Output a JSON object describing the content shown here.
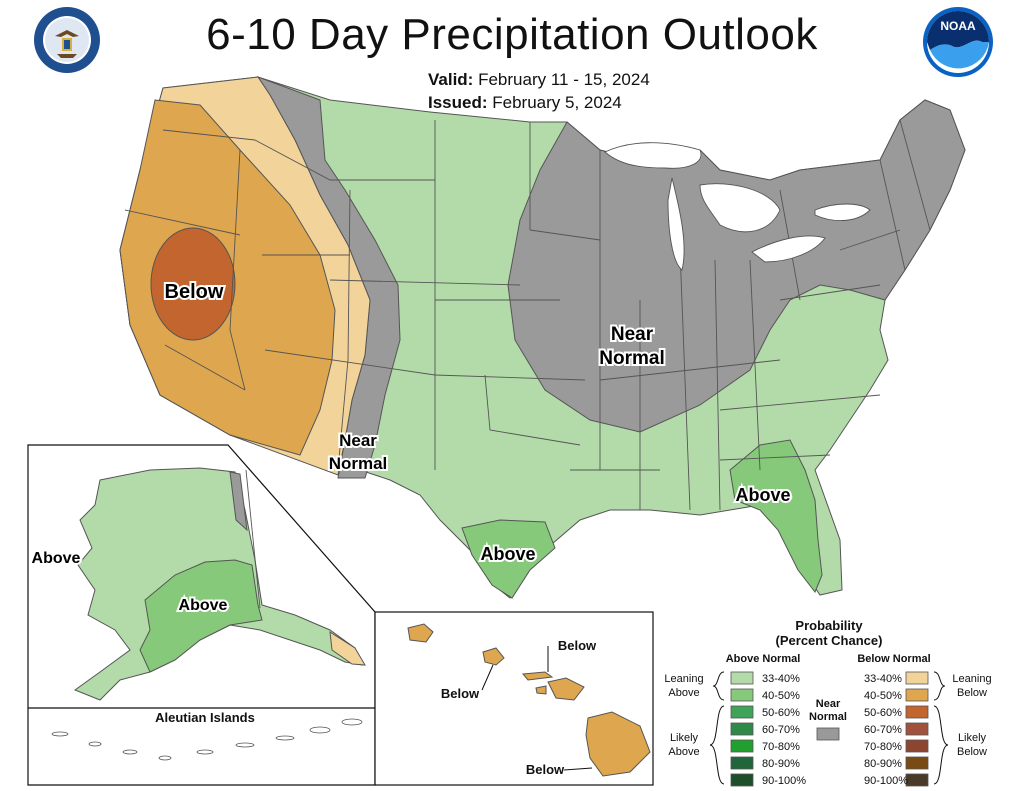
{
  "header": {
    "title": "6-10 Day Precipitation Outlook",
    "valid_label": "Valid:",
    "valid_value": "February 11 - 15, 2024",
    "issued_label": "Issued:",
    "issued_value": "February 5, 2024",
    "left_logo": "department-of-commerce-seal",
    "right_logo": "noaa-logo"
  },
  "map_labels": {
    "west_below": "Below",
    "southwest_near_1": "Near",
    "southwest_near_2": "Normal",
    "central_near_1": "Near",
    "central_near_2": "Normal",
    "texas_above": "Above",
    "southeast_above": "Above",
    "alaska_above_west": "Above",
    "alaska_above_south": "Above",
    "aleutian_title": "Aleutian Islands",
    "hawaii_below_1": "Below",
    "hawaii_below_2": "Below",
    "hawaii_below_3": "Below"
  },
  "legend": {
    "title_1": "Probability",
    "title_2": "(Percent Chance)",
    "above_header": "Above Normal",
    "below_header": "Below Normal",
    "leaning_above_1": "Leaning",
    "leaning_above_2": "Above",
    "likely_above_1": "Likely",
    "likely_above_2": "Above",
    "leaning_below_1": "Leaning",
    "leaning_below_2": "Below",
    "likely_below_1": "Likely",
    "likely_below_2": "Below",
    "near_1": "Near",
    "near_2": "Normal",
    "above_bins": [
      {
        "range": "33-40%",
        "color": "#b3dba9"
      },
      {
        "range": "40-50%",
        "color": "#86c97a"
      },
      {
        "range": "50-60%",
        "color": "#3fa35a"
      },
      {
        "range": "60-70%",
        "color": "#2f8a4a"
      },
      {
        "range": "70-80%",
        "color": "#22a02f"
      },
      {
        "range": "80-90%",
        "color": "#20663a"
      },
      {
        "range": "90-100%",
        "color": "#1d4f2a"
      }
    ],
    "below_bins": [
      {
        "range": "33-40%",
        "color": "#f2d49b"
      },
      {
        "range": "40-50%",
        "color": "#dea64e"
      },
      {
        "range": "50-60%",
        "color": "#c2652e"
      },
      {
        "range": "60-70%",
        "color": "#a0523d"
      },
      {
        "range": "70-80%",
        "color": "#8c4530"
      },
      {
        "range": "80-90%",
        "color": "#7a4a15"
      },
      {
        "range": "90-100%",
        "color": "#4a3a2a"
      }
    ],
    "near_color": "#999999"
  },
  "colors": {
    "near_normal": "#9a9a9a",
    "above_33": "#b3dba9",
    "above_40": "#86c97a",
    "below_33": "#f2d49b",
    "below_40": "#dea64e",
    "below_50": "#c2652e",
    "boundary": "#555555"
  }
}
